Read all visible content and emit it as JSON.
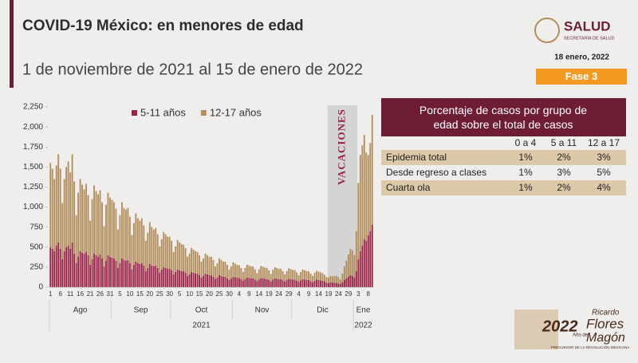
{
  "header": {
    "title": "COVID-19 México: en menores de edad",
    "subtitle": "1 de noviembre de 2021 al 15 de enero de 2022",
    "logo": "SALUD",
    "logo_sub": "SECRETARÍA DE SALUD",
    "date": "18 enero, 2022",
    "phase": "Fase 3"
  },
  "table": {
    "title": "Porcentaje de casos por grupo de edad sobre el total de casos",
    "columns": [
      "0 a 4",
      "5 a 11",
      "12 a 17"
    ],
    "rows": [
      [
        "Epidemia total",
        "1%",
        "2%",
        "3%"
      ],
      [
        "Desde regreso a clases",
        "1%",
        "3%",
        "5%"
      ],
      [
        "Cuarta ola",
        "1%",
        "2%",
        "4%"
      ]
    ]
  },
  "footer": {
    "year": "2022",
    "year_sub": "Año de",
    "name_1": "Ricardo",
    "name_2": "Flores",
    "name_3": "Magón",
    "tagline": "PRECURSOR DE LA REVOLUCIÓN MEXICANA"
  },
  "chart_data": {
    "type": "stacked_bar",
    "categories": [
      "1",
      null,
      null,
      null,
      null,
      "6",
      null,
      null,
      null,
      null,
      "11",
      null,
      null,
      null,
      null,
      "16",
      null,
      null,
      null,
      null,
      "21",
      null,
      null,
      null,
      null,
      "26",
      null,
      null,
      null,
      null,
      "31",
      null,
      null,
      null,
      null,
      "5",
      null,
      null,
      null,
      null,
      "10",
      null,
      null,
      null,
      null,
      "15",
      null,
      null,
      null,
      null,
      "20",
      null,
      null,
      null,
      null,
      "25",
      null,
      null,
      null,
      null,
      "30",
      null,
      null,
      null,
      null,
      "5",
      null,
      null,
      null,
      null,
      "10",
      null,
      null,
      null,
      null,
      "15",
      null,
      null,
      null,
      null,
      "20",
      null,
      null,
      null,
      null,
      "25",
      null,
      null,
      null,
      null,
      "30",
      null,
      null,
      null,
      null,
      "4",
      null,
      null,
      null,
      null,
      "9",
      null,
      null,
      null,
      null,
      "14",
      null,
      null,
      null,
      null,
      "19",
      null,
      null,
      null,
      null,
      "24",
      null,
      null,
      null,
      null,
      "29",
      null,
      null,
      null,
      null,
      "4",
      null,
      null,
      null,
      null,
      "9",
      null,
      null,
      null,
      null,
      "14",
      null,
      null,
      null,
      null,
      "19",
      null,
      null,
      null,
      null,
      "24",
      null,
      null,
      null,
      null,
      "29",
      null,
      null,
      null,
      null,
      "3",
      null,
      null,
      null,
      null,
      "8",
      null,
      null
    ],
    "x_groups": [
      {
        "year": "2021",
        "months": [
          "Ago",
          "Sep",
          "Oct",
          "Nov",
          "Dic"
        ]
      },
      {
        "year": "2022",
        "months": [
          "Ene"
        ]
      }
    ],
    "series": [
      {
        "name": "5-11 años",
        "color": "#9b2247",
        "values": [
          500,
          480,
          450,
          520,
          560,
          480,
          350,
          450,
          500,
          520,
          480,
          560,
          420,
          300,
          380,
          450,
          430,
          420,
          440,
          400,
          280,
          350,
          420,
          400,
          380,
          410,
          360,
          260,
          330,
          400,
          380,
          370,
          360,
          330,
          240,
          300,
          360,
          340,
          330,
          340,
          300,
          220,
          280,
          320,
          300,
          290,
          300,
          270,
          200,
          240,
          290,
          270,
          260,
          270,
          240,
          180,
          220,
          250,
          240,
          230,
          230,
          210,
          160,
          190,
          220,
          210,
          200,
          200,
          180,
          140,
          160,
          190,
          180,
          170,
          170,
          150,
          120,
          140,
          170,
          160,
          150,
          150,
          130,
          100,
          120,
          150,
          140,
          130,
          130,
          110,
          90,
          110,
          130,
          125,
          120,
          115,
          100,
          80,
          100,
          120,
          115,
          110,
          110,
          95,
          75,
          95,
          115,
          110,
          105,
          100,
          90,
          70,
          95,
          110,
          105,
          100,
          100,
          85,
          70,
          90,
          105,
          100,
          95,
          95,
          80,
          65,
          85,
          100,
          95,
          90,
          90,
          75,
          60,
          80,
          95,
          90,
          85,
          80,
          70,
          55,
          50,
          60,
          55,
          55,
          50,
          45,
          35,
          60,
          90,
          110,
          130,
          150,
          140,
          120,
          200,
          350,
          450,
          520,
          600,
          580,
          650,
          700,
          780
        ]
      },
      {
        "name": "12-17 años",
        "color": "#b38e5d",
        "values": [
          1050,
          1000,
          900,
          1000,
          1100,
          1000,
          700,
          900,
          1000,
          1050,
          950,
          1100,
          900,
          600,
          800,
          900,
          850,
          800,
          850,
          750,
          550,
          750,
          850,
          800,
          780,
          800,
          700,
          500,
          700,
          780,
          740,
          720,
          700,
          650,
          480,
          600,
          700,
          650,
          640,
          650,
          580,
          430,
          520,
          600,
          560,
          540,
          560,
          500,
          380,
          440,
          520,
          480,
          460,
          470,
          420,
          330,
          380,
          440,
          420,
          400,
          400,
          370,
          280,
          320,
          370,
          350,
          340,
          330,
          310,
          240,
          260,
          300,
          290,
          280,
          270,
          250,
          200,
          220,
          250,
          240,
          230,
          230,
          210,
          160,
          180,
          210,
          200,
          190,
          190,
          170,
          130,
          150,
          180,
          170,
          160,
          160,
          140,
          110,
          140,
          160,
          155,
          150,
          150,
          130,
          100,
          130,
          150,
          145,
          140,
          140,
          120,
          95,
          120,
          140,
          135,
          130,
          130,
          115,
          90,
          110,
          130,
          125,
          120,
          120,
          105,
          85,
          105,
          120,
          115,
          110,
          110,
          95,
          80,
          100,
          110,
          105,
          100,
          95,
          85,
          70,
          70,
          80,
          80,
          85,
          90,
          80,
          60,
          110,
          170,
          220,
          280,
          330,
          320,
          280,
          500,
          950,
          1200,
          1250,
          1300,
          1100,
          1000,
          1100,
          1370
        ]
      }
    ],
    "ylim": [
      0,
      2250
    ],
    "yticks": [
      0,
      250,
      500,
      750,
      {
        "value": 1000,
        "label": "1,000"
      },
      {
        "value": 1250,
        "label": "1,250"
      },
      {
        "value": 1500,
        "label": "1,500"
      },
      {
        "value": 1750,
        "label": "1,750"
      },
      {
        "value": 2000,
        "label": "2,000"
      },
      {
        "value": 2250,
        "label": "2,250"
      }
    ],
    "grid": false,
    "legend": "top",
    "annotation": {
      "text": "VACACIONES",
      "start": 140,
      "end": 154
    }
  }
}
